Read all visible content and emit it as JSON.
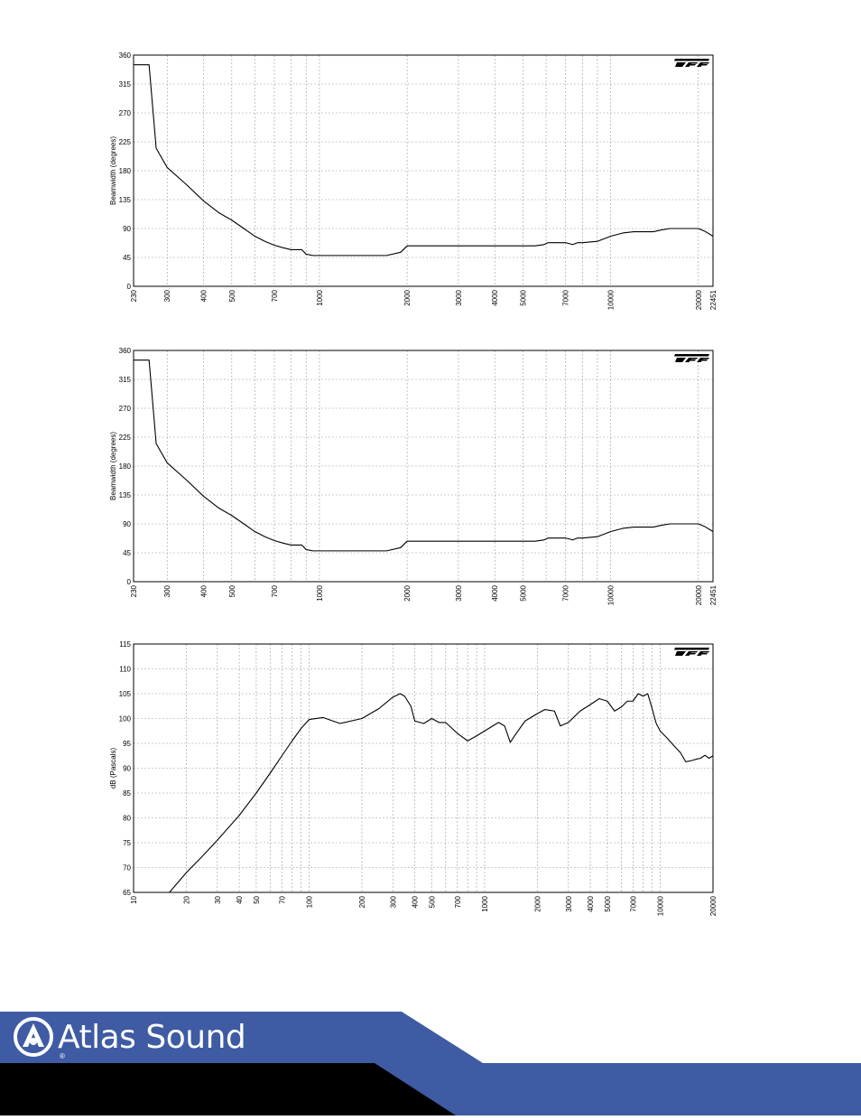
{
  "chart_data": [
    {
      "type": "line",
      "title": "",
      "xlabel": "",
      "ylabel": "Beamwidth (degrees)",
      "xscale": "log",
      "xlim": [
        230,
        22451
      ],
      "ylim": [
        0,
        360
      ],
      "grid": true,
      "x_tick_labels": [
        "230",
        "300",
        "400",
        "500",
        "700",
        "1000",
        "2000",
        "3000",
        "4000",
        "5000",
        "7000",
        "10000",
        "20000",
        "22451"
      ],
      "y_tick_labels": [
        "0",
        "45",
        "90",
        "135",
        "180",
        "225",
        "270",
        "315",
        "360"
      ],
      "series": [
        {
          "x": [
            230,
            260,
            275,
            300,
            350,
            400,
            450,
            500,
            550,
            600,
            650,
            700,
            750,
            800,
            870,
            900,
            950,
            1000,
            1200,
            1500,
            1700,
            1900,
            2000,
            2500,
            3000,
            4000,
            5000,
            5500,
            5900,
            6100,
            6500,
            7000,
            7400,
            7700,
            8000,
            9000,
            10000,
            11000,
            12000,
            13000,
            14000,
            15000,
            16000,
            20000,
            21000,
            22451
          ],
          "y": [
            345,
            345,
            215,
            185,
            158,
            133,
            115,
            103,
            90,
            78,
            70,
            64,
            60,
            57,
            57,
            50,
            48,
            48,
            48,
            48,
            48,
            53,
            63,
            63,
            63,
            63,
            63,
            63,
            65,
            68,
            68,
            68,
            65,
            68,
            68,
            70,
            78,
            83,
            85,
            85,
            85,
            88,
            90,
            90,
            86,
            78
          ]
        }
      ]
    },
    {
      "type": "line",
      "title": "",
      "xlabel": "",
      "ylabel": "Beamwidth (degrees)",
      "xscale": "log",
      "xlim": [
        230,
        22451
      ],
      "ylim": [
        0,
        360
      ],
      "grid": true,
      "x_tick_labels": [
        "230",
        "300",
        "400",
        "500",
        "700",
        "1000",
        "2000",
        "3000",
        "4000",
        "5000",
        "7000",
        "10000",
        "20000",
        "22451"
      ],
      "y_tick_labels": [
        "0",
        "45",
        "90",
        "135",
        "180",
        "225",
        "270",
        "315",
        "360"
      ],
      "series": [
        {
          "x": [
            230,
            260,
            275,
            300,
            350,
            400,
            450,
            500,
            550,
            600,
            650,
            700,
            750,
            800,
            870,
            900,
            950,
            1000,
            1200,
            1500,
            1700,
            1900,
            2000,
            2500,
            3000,
            4000,
            5000,
            5500,
            5900,
            6100,
            6500,
            7000,
            7400,
            7700,
            8000,
            9000,
            10000,
            11000,
            12000,
            13000,
            14000,
            15000,
            16000,
            20000,
            21000,
            22451
          ],
          "y": [
            345,
            345,
            215,
            185,
            158,
            133,
            115,
            103,
            90,
            78,
            70,
            64,
            60,
            57,
            57,
            50,
            48,
            48,
            48,
            48,
            48,
            53,
            63,
            63,
            63,
            63,
            63,
            63,
            65,
            68,
            68,
            68,
            65,
            68,
            68,
            70,
            78,
            83,
            85,
            85,
            85,
            88,
            90,
            90,
            86,
            78
          ]
        }
      ]
    },
    {
      "type": "line",
      "title": "",
      "xlabel": "",
      "ylabel": "dB (Pascals)",
      "xscale": "log",
      "xlim": [
        10,
        20000
      ],
      "ylim": [
        65,
        115
      ],
      "grid": true,
      "x_tick_labels": [
        "10",
        "20",
        "30",
        "40",
        "50",
        "70",
        "100",
        "200",
        "300",
        "400",
        "500",
        "700",
        "1000",
        "2000",
        "3000",
        "4000",
        "5000",
        "7000",
        "10000",
        "20000"
      ],
      "y_tick_labels": [
        "65",
        "70",
        "75",
        "80",
        "85",
        "90",
        "95",
        "100",
        "105",
        "110",
        "115"
      ],
      "series": [
        {
          "x": [
            16,
            20,
            25,
            30,
            40,
            50,
            60,
            70,
            80,
            90,
            100,
            120,
            150,
            200,
            250,
            300,
            330,
            350,
            380,
            400,
            450,
            500,
            550,
            600,
            700,
            800,
            900,
            1000,
            1200,
            1300,
            1400,
            1500,
            1700,
            2000,
            2200,
            2500,
            2700,
            3000,
            3500,
            4000,
            4500,
            5000,
            5500,
            6000,
            6500,
            7000,
            7500,
            8000,
            8500,
            9000,
            9500,
            10000,
            11000,
            12000,
            13000,
            14000,
            15000,
            16000,
            17000,
            18000,
            19000,
            20000
          ],
          "y": [
            65,
            69,
            72.5,
            75.5,
            80.5,
            85,
            89,
            92.5,
            95.5,
            98,
            99.8,
            100.2,
            99,
            100,
            102,
            104.3,
            105,
            104.5,
            102.5,
            99.5,
            99,
            100,
            99.2,
            99.2,
            97,
            95.5,
            96.5,
            97.5,
            99.2,
            98.5,
            95.2,
            96.8,
            99.5,
            101,
            101.8,
            101.5,
            98.5,
            99.2,
            101.5,
            102.8,
            104,
            103.5,
            101.5,
            102.3,
            103.5,
            103.5,
            105,
            104.5,
            105,
            102,
            99,
            97.5,
            96,
            94.5,
            93.2,
            91.3,
            91.5,
            91.8,
            92,
            92.6,
            92,
            92.5
          ]
        }
      ]
    }
  ],
  "footer": {
    "brand_name": "Atlas Sound",
    "registered_mark": "®",
    "colors": {
      "blue": "#3E5BA3",
      "black": "#000000"
    }
  },
  "watermark_icon": "tef-logo-icon"
}
